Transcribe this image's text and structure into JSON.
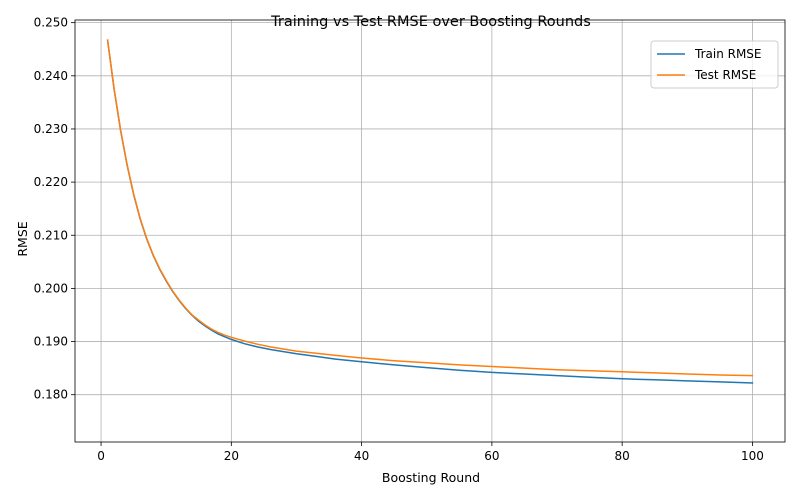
{
  "chart_data": {
    "type": "line",
    "title": "Training vs Test RMSE over Boosting Rounds",
    "xlabel": "Boosting Round",
    "ylabel": "RMSE",
    "xlim": [
      -4,
      105
    ],
    "ylim": [
      0.1711,
      0.2505
    ],
    "grid": true,
    "legend_position": "top-right",
    "x_ticks": [
      0,
      20,
      40,
      60,
      80,
      100
    ],
    "x_tick_labels": [
      "0",
      "20",
      "40",
      "60",
      "80",
      "100"
    ],
    "y_ticks": [
      0.18,
      0.19,
      0.2,
      0.21,
      0.22,
      0.23,
      0.24,
      0.25
    ],
    "y_tick_labels": [
      "0.180",
      "0.190",
      "0.200",
      "0.210",
      "0.220",
      "0.230",
      "0.240",
      "0.250"
    ],
    "series": [
      {
        "name": "Train RMSE",
        "color": "#1f77b4",
        "x": [
          1,
          2,
          3,
          4,
          5,
          6,
          7,
          8,
          9,
          10,
          11,
          12,
          13,
          14,
          15,
          16,
          17,
          18,
          19,
          20,
          22,
          24,
          26,
          28,
          30,
          33,
          36,
          40,
          45,
          50,
          55,
          60,
          65,
          70,
          75,
          80,
          85,
          90,
          95,
          100
        ],
        "y": [
          0.2467,
          0.2375,
          0.2297,
          0.2232,
          0.2177,
          0.2131,
          0.2093,
          0.2062,
          0.2036,
          0.2014,
          0.1994,
          0.1977,
          0.1962,
          0.1949,
          0.1938,
          0.1929,
          0.1921,
          0.1914,
          0.1909,
          0.1904,
          0.1896,
          0.189,
          0.1885,
          0.1881,
          0.1877,
          0.1872,
          0.1867,
          0.1862,
          0.1856,
          0.1851,
          0.1846,
          0.1842,
          0.1839,
          0.1836,
          0.1833,
          0.183,
          0.1828,
          0.1826,
          0.1824,
          0.1822
        ]
      },
      {
        "name": "Test RMSE",
        "color": "#ff7f0e",
        "x": [
          1,
          2,
          3,
          4,
          5,
          6,
          7,
          8,
          9,
          10,
          11,
          12,
          13,
          14,
          15,
          16,
          17,
          18,
          19,
          20,
          22,
          24,
          26,
          28,
          30,
          33,
          36,
          40,
          45,
          50,
          55,
          60,
          65,
          70,
          75,
          80,
          85,
          90,
          95,
          100
        ],
        "y": [
          0.2467,
          0.2376,
          0.2298,
          0.2233,
          0.2178,
          0.2132,
          0.2094,
          0.2063,
          0.2037,
          0.2015,
          0.1995,
          0.1978,
          0.1963,
          0.195,
          0.194,
          0.1931,
          0.1923,
          0.1917,
          0.1912,
          0.1908,
          0.1901,
          0.1895,
          0.189,
          0.1886,
          0.1882,
          0.1878,
          0.1874,
          0.1869,
          0.1864,
          0.186,
          0.1856,
          0.1853,
          0.185,
          0.1847,
          0.1845,
          0.1843,
          0.1841,
          0.1839,
          0.1837,
          0.1836
        ]
      }
    ]
  }
}
